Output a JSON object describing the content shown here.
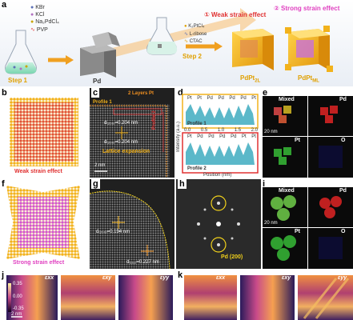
{
  "panel_labels": [
    "a",
    "b",
    "c",
    "d",
    "e",
    "f",
    "g",
    "h",
    "i",
    "j",
    "k"
  ],
  "panel_a": {
    "legend": [
      "KBr",
      "KCl",
      "Na₂PdCl₄",
      "PVP"
    ],
    "legend_colors": [
      "#5b6fb5",
      "#b06fc0",
      "#c9a400",
      "#e34b4b"
    ],
    "step1": "Step 1",
    "step2": "Step 2",
    "pd_label": "Pd",
    "step2_legend": [
      "K₂PtCl₄",
      "L-ribose",
      "CTAC"
    ],
    "weak_circle": "①",
    "weak_text": "Weak strain effect",
    "strong_circle": "②",
    "strong_text": "Strong strain effect",
    "pdpt2l": "PdPt",
    "pdpt2l_sub": "2L",
    "pdptml": "PdPt",
    "pdptml_sub": "ML"
  },
  "panel_b": {
    "caption": "Weak strain effect"
  },
  "panel_c": {
    "layers": "2 Layers Pt",
    "profile1": "Profile 1",
    "profile2": "Profile 2",
    "d1": "d₍₂₀₀₎=0.204 nm",
    "d2": "d₍₂₀₀₎=0.204 nm",
    "lattice": "Lattice expansion",
    "scale": "2 nm"
  },
  "panel_d": {
    "p1_label": "Profile 1",
    "p2_label": "Profile 2",
    "p1_peaks": [
      "Pt",
      "Pt",
      "Pd",
      "Pd",
      "Pd",
      "Pd",
      "Pt"
    ],
    "p2_peaks": [
      "Pt",
      "Pd",
      "Pd",
      "Pd",
      "Pd",
      "Pt",
      "Pt"
    ],
    "xlabel": "Position (nm)",
    "ylabel": "Intensity (a.u.)",
    "ticks": [
      "0.0",
      "0.5",
      "1.0",
      "1.5",
      "2.0"
    ]
  },
  "panel_e": {
    "mixed": "Mixed",
    "pd": "Pd",
    "pt": "Pt",
    "o": "O",
    "scale": "20 nm"
  },
  "panel_f": {
    "caption": "Strong strain effect"
  },
  "panel_g": {
    "d1": "d₍₂₀₀₎=0.194 nm",
    "d2": "d₍₁₁₁₎=0.227 nm"
  },
  "panel_h": {
    "label": "Pd (200)"
  },
  "panel_i": {
    "mixed": "Mixed",
    "pd": "Pd",
    "pt": "Pt",
    "o": "O",
    "scale": "20 nm"
  },
  "panel_j": {
    "labels": [
      "εxx",
      "εxy",
      "εyy"
    ],
    "colorbar": [
      "0.35",
      "0.00",
      "-0.35"
    ],
    "scale": "2 nm"
  },
  "panel_k": {
    "labels": [
      "εxx",
      "εxy",
      "εyy"
    ]
  },
  "colors": {
    "weak_red": "#e03030",
    "strong_pink": "#e040c0",
    "gold": "#f2b21b",
    "gray_cube": "#9a9a9a"
  }
}
